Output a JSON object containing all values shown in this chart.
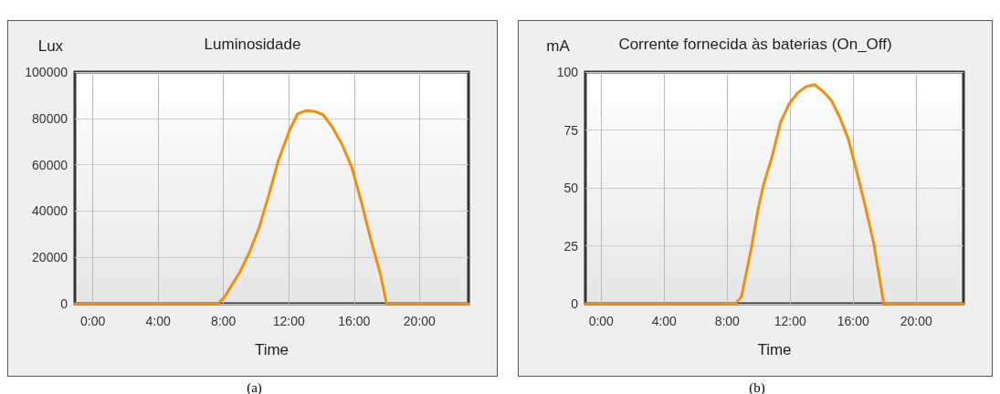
{
  "chart_data": [
    {
      "type": "line",
      "title": "Luminosidade",
      "ylabel": "Lux",
      "xlabel": "Time",
      "annotations": [
        "(a)"
      ],
      "xlim": [
        -1.1,
        23
      ],
      "ylim": [
        0,
        100000
      ],
      "xticks": [
        {
          "value": 0,
          "label": "0:00"
        },
        {
          "value": 4,
          "label": "4:00"
        },
        {
          "value": 8,
          "label": "8:00"
        },
        {
          "value": 12,
          "label": "12:00"
        },
        {
          "value": 16,
          "label": "16:00"
        },
        {
          "value": 20,
          "label": "20:00"
        }
      ],
      "yticks": [
        0,
        20000,
        40000,
        60000,
        80000,
        100000
      ],
      "grid": true,
      "line_style": "solid",
      "series": [
        {
          "color": "#f0900a",
          "x": [
            -1.1,
            7.65,
            8.04,
            9.0,
            9.6,
            10.2,
            10.77,
            11.36,
            12.04,
            12.53,
            13.07,
            13.6,
            14.09,
            14.67,
            15.26,
            15.84,
            16.43,
            17.01,
            17.6,
            17.99,
            23
          ],
          "values": [
            0,
            0,
            2700,
            13600,
            22400,
            33300,
            46900,
            61900,
            74800,
            81900,
            83400,
            83000,
            81600,
            76200,
            68700,
            59200,
            44200,
            27900,
            12900,
            0,
            0
          ]
        }
      ]
    },
    {
      "type": "line",
      "title": "Corrente fornecida às baterias (On_Off)",
      "ylabel": "mA",
      "xlabel": "Time",
      "annotations": [
        "(b)"
      ],
      "xlim": [
        -1,
        23
      ],
      "ylim": [
        0,
        100
      ],
      "xticks": [
        {
          "value": 0,
          "label": "0:00"
        },
        {
          "value": 4,
          "label": "4:00"
        },
        {
          "value": 8,
          "label": "8:00"
        },
        {
          "value": 12,
          "label": "12:00"
        },
        {
          "value": 16,
          "label": "16:00"
        },
        {
          "value": 20,
          "label": "20:00"
        }
      ],
      "yticks": [
        0,
        25,
        50,
        75,
        100
      ],
      "grid": true,
      "line_style": "solid",
      "series": [
        {
          "color": "#f0900a",
          "x": [
            -1,
            8.52,
            8.91,
            9.51,
            9.96,
            10.31,
            10.85,
            11.39,
            11.93,
            12.47,
            13.0,
            13.54,
            14.08,
            14.62,
            15.16,
            15.7,
            16.23,
            16.77,
            17.31,
            17.94,
            23
          ],
          "values": [
            0,
            0,
            3.1,
            23.2,
            40.7,
            51.4,
            63.5,
            78.3,
            86.3,
            91.0,
            93.7,
            94.6,
            91.7,
            87.7,
            80.3,
            70.9,
            56.8,
            42.0,
            25.9,
            0,
            0
          ]
        }
      ]
    }
  ]
}
